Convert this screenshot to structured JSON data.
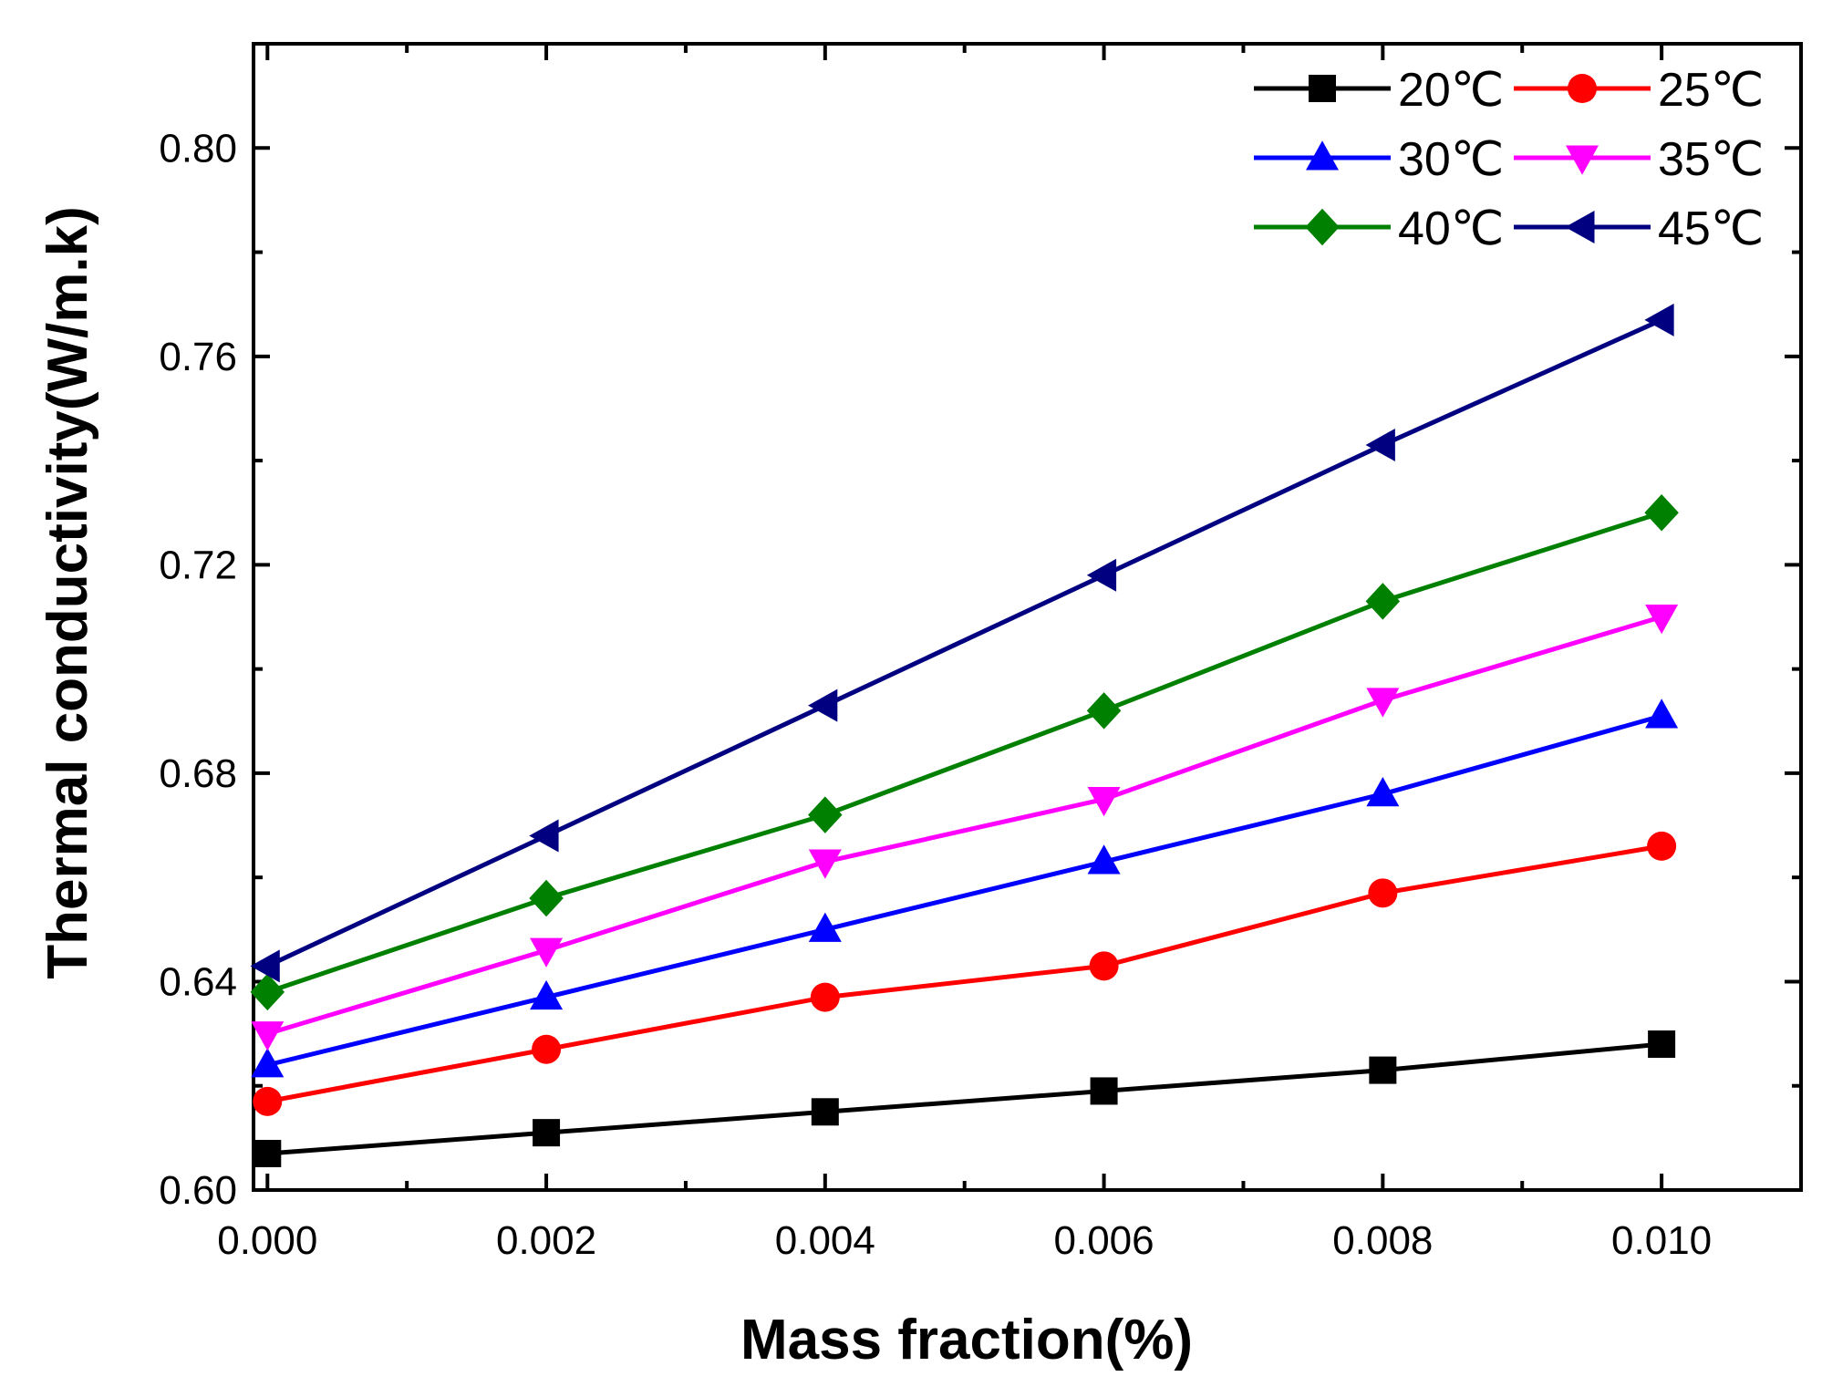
{
  "chart_data": {
    "type": "line",
    "title": "",
    "xlabel": "Mass fraction(%)",
    "ylabel": "Thermal conductivity(W/m.k)",
    "xlim": [
      -0.0001,
      0.011
    ],
    "ylim": [
      0.6,
      0.82
    ],
    "x": [
      0.0,
      0.002,
      0.004,
      0.006,
      0.008,
      0.01
    ],
    "xticks": [
      0.0,
      0.002,
      0.004,
      0.006,
      0.008,
      0.01
    ],
    "xtick_labels": [
      "0.000",
      "0.002",
      "0.004",
      "0.006",
      "0.008",
      "0.010"
    ],
    "yticks": [
      0.6,
      0.64,
      0.68,
      0.72,
      0.76,
      0.8
    ],
    "ytick_labels": [
      "0.60",
      "0.64",
      "0.68",
      "0.72",
      "0.76",
      "0.80"
    ],
    "grid": false,
    "legend_position": "top-right",
    "series": [
      {
        "name": "20℃",
        "color": "#000000",
        "marker": "square",
        "values": [
          0.607,
          0.611,
          0.615,
          0.619,
          0.623,
          0.628
        ]
      },
      {
        "name": "25℃",
        "color": "#ff0000",
        "marker": "circle",
        "values": [
          0.617,
          0.627,
          0.637,
          0.643,
          0.657,
          0.666
        ]
      },
      {
        "name": "30℃",
        "color": "#0000ff",
        "marker": "triangle-up",
        "values": [
          0.624,
          0.637,
          0.65,
          0.663,
          0.676,
          0.691
        ]
      },
      {
        "name": "35℃",
        "color": "#ff00ff",
        "marker": "triangle-down",
        "values": [
          0.63,
          0.646,
          0.663,
          0.675,
          0.694,
          0.71
        ]
      },
      {
        "name": "40℃",
        "color": "#008000",
        "marker": "diamond",
        "values": [
          0.638,
          0.656,
          0.672,
          0.692,
          0.713,
          0.73
        ]
      },
      {
        "name": "45℃",
        "color": "#000080",
        "marker": "triangle-left",
        "values": [
          0.643,
          0.668,
          0.693,
          0.718,
          0.743,
          0.767
        ]
      }
    ]
  }
}
